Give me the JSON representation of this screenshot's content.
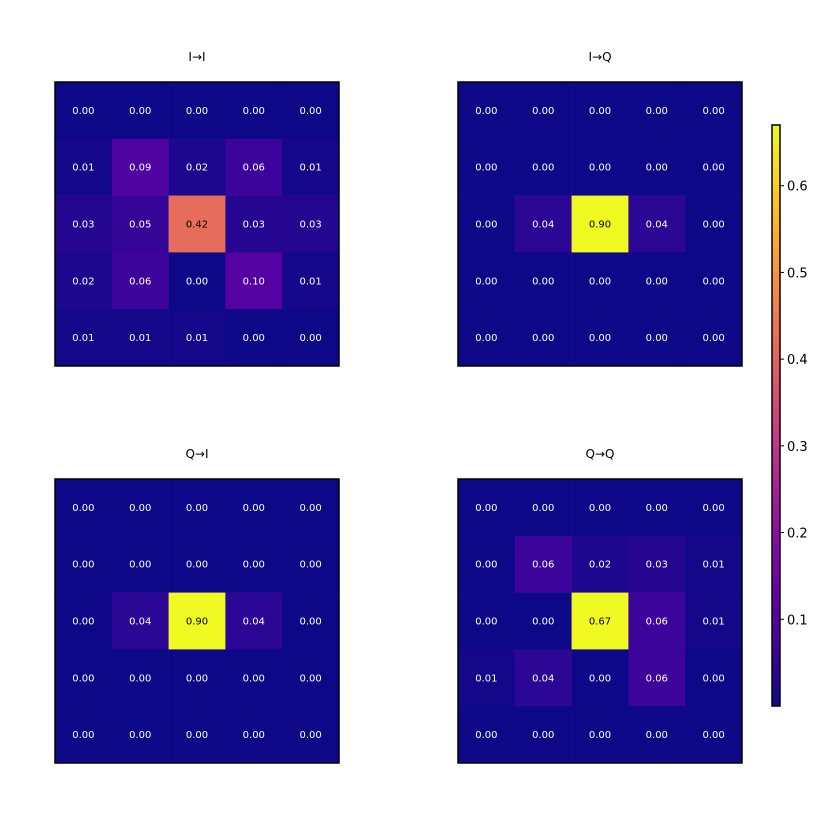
{
  "chart_data": [
    {
      "type": "heatmap",
      "title": "I→I",
      "rows": [
        [
          0.0,
          0.0,
          0.0,
          0.0,
          0.0
        ],
        [
          0.01,
          0.09,
          0.02,
          0.06,
          0.01
        ],
        [
          0.03,
          0.05,
          0.42,
          0.03,
          0.03
        ],
        [
          0.02,
          0.06,
          0.0,
          0.1,
          0.01
        ],
        [
          0.01,
          0.01,
          0.01,
          0.0,
          0.0
        ]
      ]
    },
    {
      "type": "heatmap",
      "title": "I→Q",
      "rows": [
        [
          0.0,
          0.0,
          0.0,
          0.0,
          0.0
        ],
        [
          0.0,
          0.0,
          0.0,
          0.0,
          0.0
        ],
        [
          0.0,
          0.04,
          0.9,
          0.04,
          0.0
        ],
        [
          0.0,
          0.0,
          0.0,
          0.0,
          0.0
        ],
        [
          0.0,
          0.0,
          0.0,
          0.0,
          0.0
        ]
      ]
    },
    {
      "type": "heatmap",
      "title": "Q→I",
      "rows": [
        [
          0.0,
          0.0,
          0.0,
          0.0,
          0.0
        ],
        [
          0.0,
          0.0,
          0.0,
          0.0,
          0.0
        ],
        [
          0.0,
          0.04,
          0.9,
          0.04,
          0.0
        ],
        [
          0.0,
          0.0,
          0.0,
          0.0,
          0.0
        ],
        [
          0.0,
          0.0,
          0.0,
          0.0,
          0.0
        ]
      ]
    },
    {
      "type": "heatmap",
      "title": "Q→Q",
      "rows": [
        [
          0.0,
          0.0,
          0.0,
          0.0,
          0.0
        ],
        [
          0.0,
          0.06,
          0.02,
          0.03,
          0.01
        ],
        [
          0.0,
          0.0,
          0.67,
          0.06,
          0.01
        ],
        [
          0.01,
          0.04,
          0.0,
          0.06,
          0.0
        ],
        [
          0.0,
          0.0,
          0.0,
          0.0,
          0.0
        ]
      ]
    }
  ],
  "colorbar": {
    "colormap": "plasma",
    "vmin": 0.0,
    "vmax": 0.67,
    "ticks": [
      0.1,
      0.2,
      0.3,
      0.4,
      0.5,
      0.6
    ],
    "tick_labels": [
      "0.1",
      "0.2",
      "0.3",
      "0.4",
      "0.5",
      "0.6"
    ]
  }
}
